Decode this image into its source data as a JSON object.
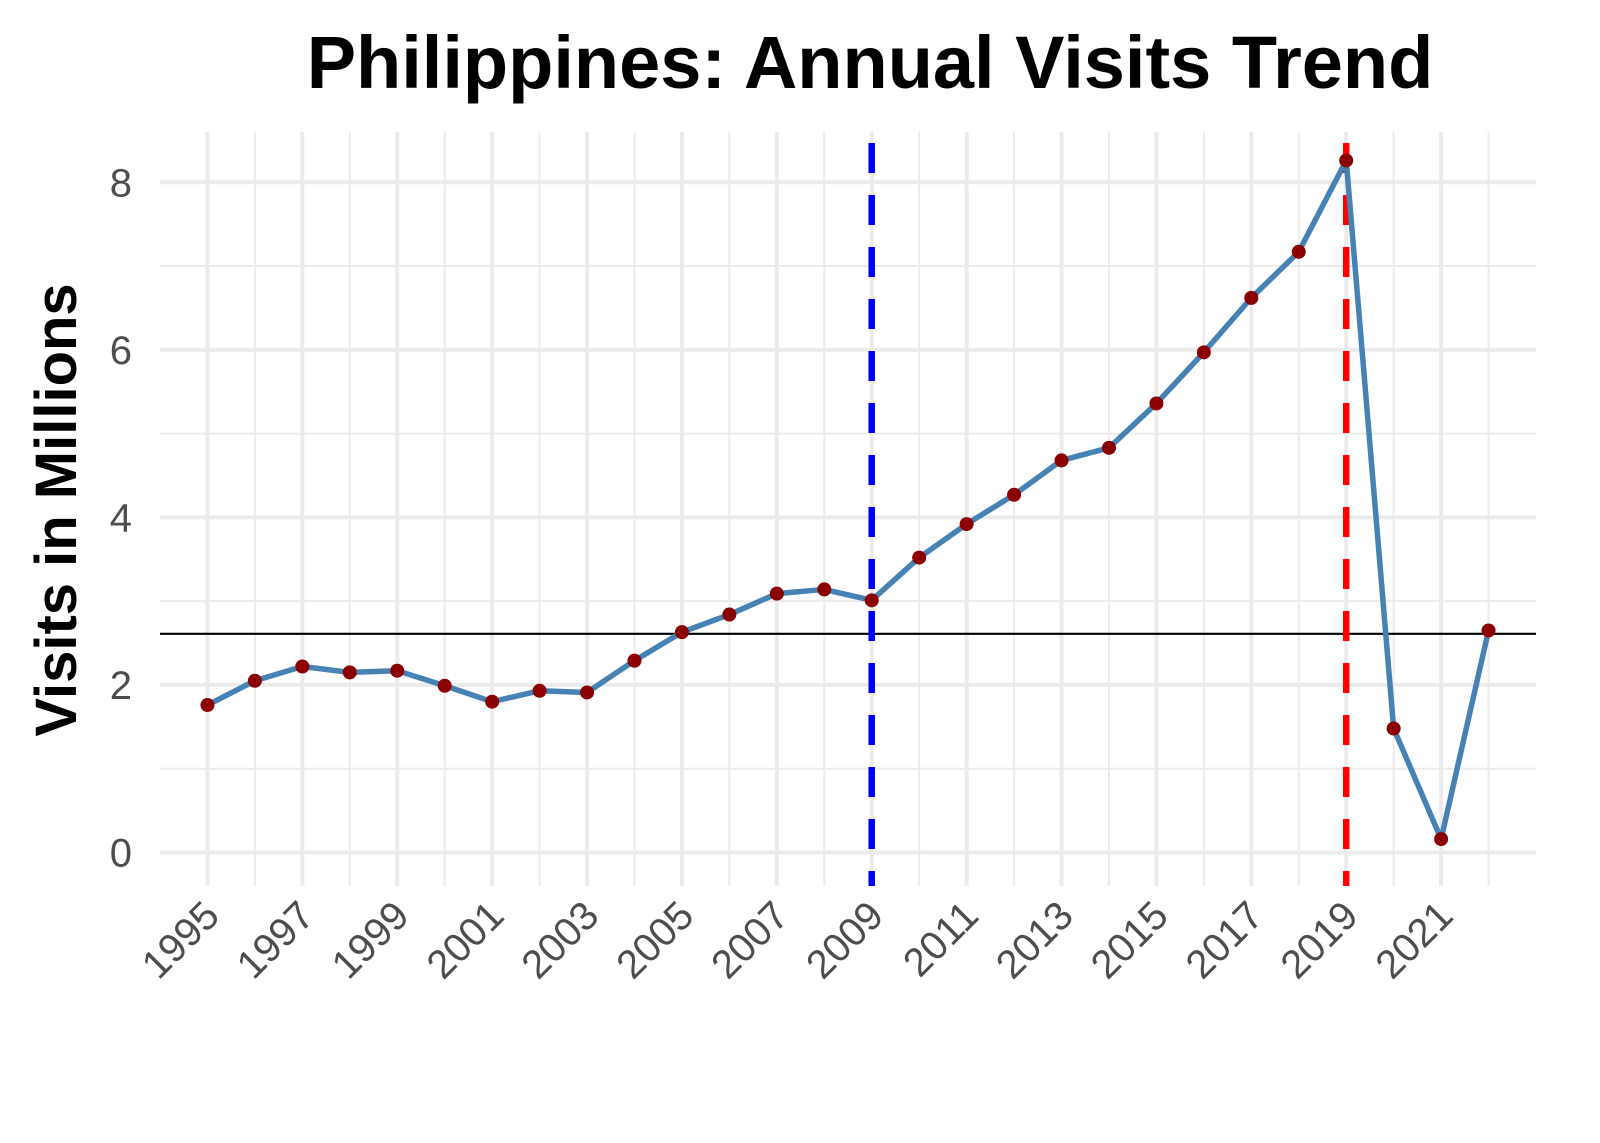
{
  "chart_data": {
    "type": "line",
    "title": "Philippines: Annual Visits Trend",
    "xlabel": "",
    "ylabel": "Visits in Millions",
    "x": [
      1995,
      1996,
      1997,
      1998,
      1999,
      2000,
      2001,
      2002,
      2003,
      2004,
      2005,
      2006,
      2007,
      2008,
      2009,
      2010,
      2011,
      2012,
      2013,
      2014,
      2015,
      2016,
      2017,
      2018,
      2019,
      2020,
      2021,
      2022
    ],
    "series": [
      {
        "values": [
          1.76,
          2.05,
          2.22,
          2.15,
          2.17,
          1.99,
          1.8,
          1.93,
          1.91,
          2.29,
          2.63,
          2.84,
          3.09,
          3.14,
          3.01,
          3.52,
          3.92,
          4.27,
          4.68,
          4.83,
          5.36,
          5.97,
          6.62,
          7.17,
          8.26,
          1.48,
          0.16,
          2.65
        ]
      }
    ],
    "reference_lines": {
      "horizontal_y": 2.61,
      "vertical_blue_x": 2009,
      "vertical_red_x": 2019
    },
    "x_ticks": [
      "1995",
      "1997",
      "1999",
      "2001",
      "2003",
      "2005",
      "2007",
      "2009",
      "2011",
      "2013",
      "2015",
      "2017",
      "2019",
      "2021"
    ],
    "y_ticks": [
      "0",
      "2",
      "4",
      "6",
      "8"
    ],
    "xlim": [
      1994,
      2023
    ],
    "ylim": [
      -0.4,
      8.6
    ],
    "grid": true,
    "legend": "none",
    "colors": {
      "line": "#4682b4",
      "points": "#8b0000",
      "hline": "#000000",
      "vline_blue": "#0000ff",
      "vline_red": "#ff0000",
      "grid": "#ebebeb"
    }
  }
}
